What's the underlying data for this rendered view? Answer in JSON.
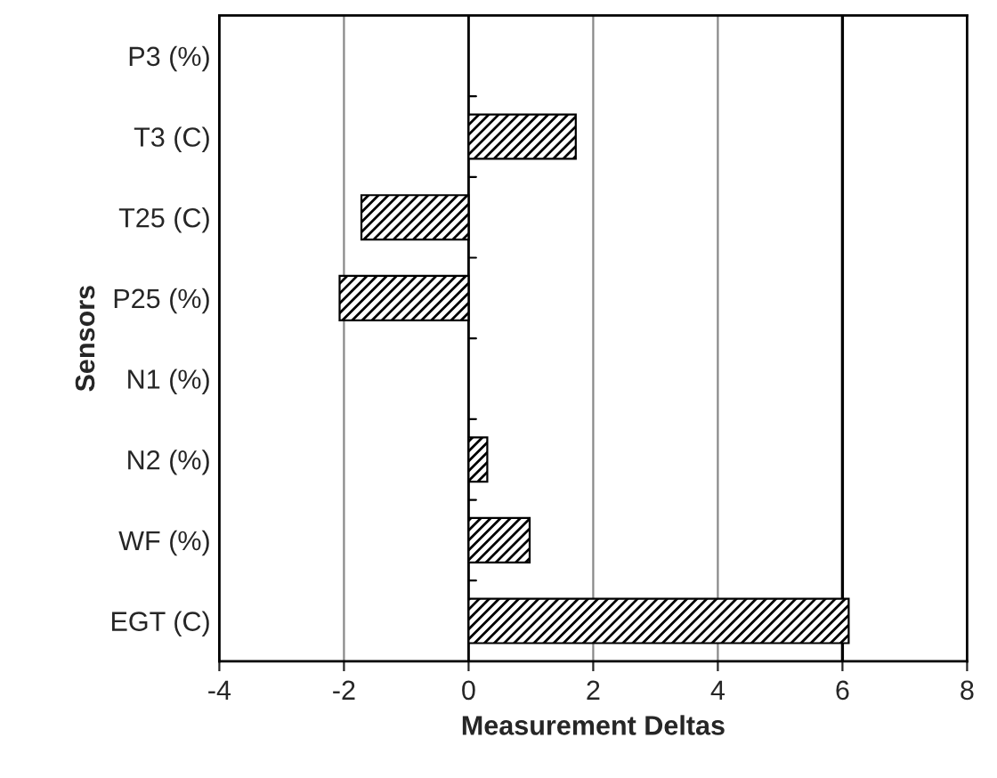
{
  "chart_data": {
    "type": "bar",
    "orientation": "horizontal",
    "xlabel": "Measurement Deltas",
    "ylabel": "Sensors",
    "categories": [
      "P3 (%)",
      "T3 (C)",
      "T25 (C)",
      "P25 (%)",
      "N1 (%)",
      "N2 (%)",
      "WF (%)",
      "EGT (C)"
    ],
    "values": [
      null,
      1.72,
      -1.72,
      -2.07,
      null,
      0.3,
      0.98,
      6.1
    ],
    "color": "#000000",
    "xlim": [
      -4,
      8
    ],
    "xticks": [
      -4,
      -2,
      0,
      2,
      4,
      6,
      8
    ],
    "grid": "x",
    "ref_lines": [
      {
        "axis": "x",
        "value": 6,
        "color": "#000000"
      }
    ]
  }
}
